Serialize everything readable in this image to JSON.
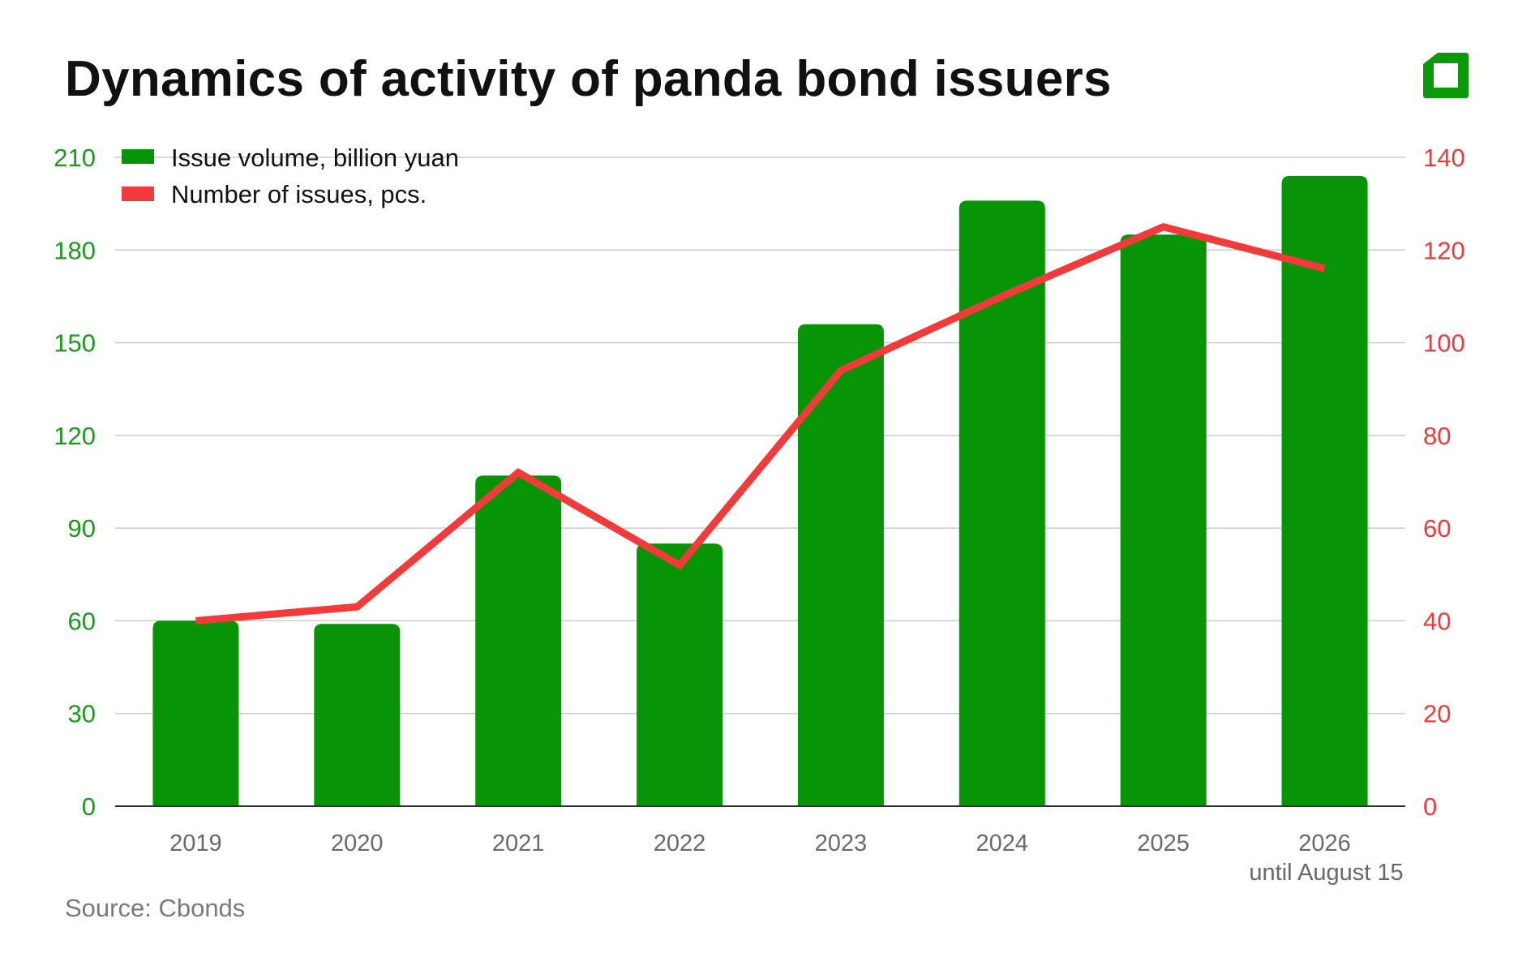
{
  "title": "Dynamics of activity of panda bond issuers",
  "source": "Source: Cbonds",
  "logo_icon": "cbonds-logo-icon",
  "colors": {
    "bars": "#079507",
    "line": "#f23a3a",
    "left_axis": "#1a9a1a",
    "right_axis": "#f03a3a",
    "grid": "#cccccc"
  },
  "chart_data": {
    "type": "bar",
    "categories": [
      "2019",
      "2020",
      "2021",
      "2022",
      "2023",
      "2024",
      "2025",
      "2026"
    ],
    "category_note": "until August 15",
    "series": [
      {
        "name": "Issue volume, billion yuan",
        "type": "bar",
        "axis": "left",
        "values": [
          60,
          59,
          107,
          85,
          156,
          196,
          185,
          204
        ]
      },
      {
        "name": "Number of issues, pcs.",
        "type": "line",
        "axis": "right",
        "values": [
          40,
          43,
          72,
          52,
          94,
          110,
          125,
          116
        ]
      }
    ],
    "y_left": {
      "min": 0,
      "max": 210,
      "ticks": [
        "0",
        "30",
        "60",
        "90",
        "120",
        "150",
        "180",
        "210"
      ]
    },
    "y_right": {
      "min": 0,
      "max": 140,
      "ticks": [
        "0",
        "20",
        "40",
        "60",
        "80",
        "100",
        "120",
        "140"
      ]
    },
    "grid": true,
    "legend_position": "top-left"
  }
}
